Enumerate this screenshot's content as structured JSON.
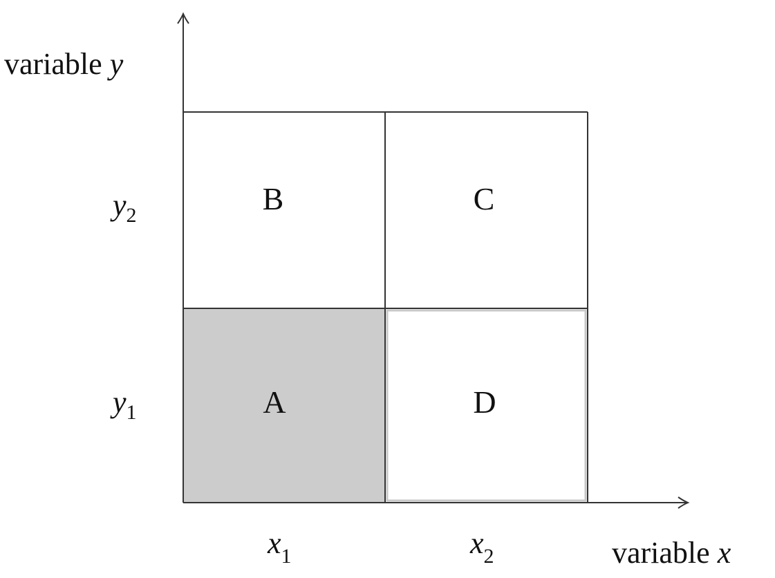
{
  "diagram": {
    "y_axis_title": {
      "word": "variable",
      "var": "y"
    },
    "x_axis_title": {
      "word": "variable",
      "var": "x"
    },
    "y_ticks": [
      {
        "var": "y",
        "sub": "2"
      },
      {
        "var": "y",
        "sub": "1"
      }
    ],
    "x_ticks": [
      {
        "var": "x",
        "sub": "1"
      },
      {
        "var": "x",
        "sub": "2"
      }
    ],
    "cells": {
      "top_left": {
        "label": "B"
      },
      "top_right": {
        "label": "C"
      },
      "bottom_left": {
        "label": "A",
        "fill": "#cccccc"
      },
      "bottom_right": {
        "label": "D"
      }
    },
    "colors": {
      "line": "#333333",
      "text": "#111111",
      "shaded": "#cccccc"
    }
  }
}
